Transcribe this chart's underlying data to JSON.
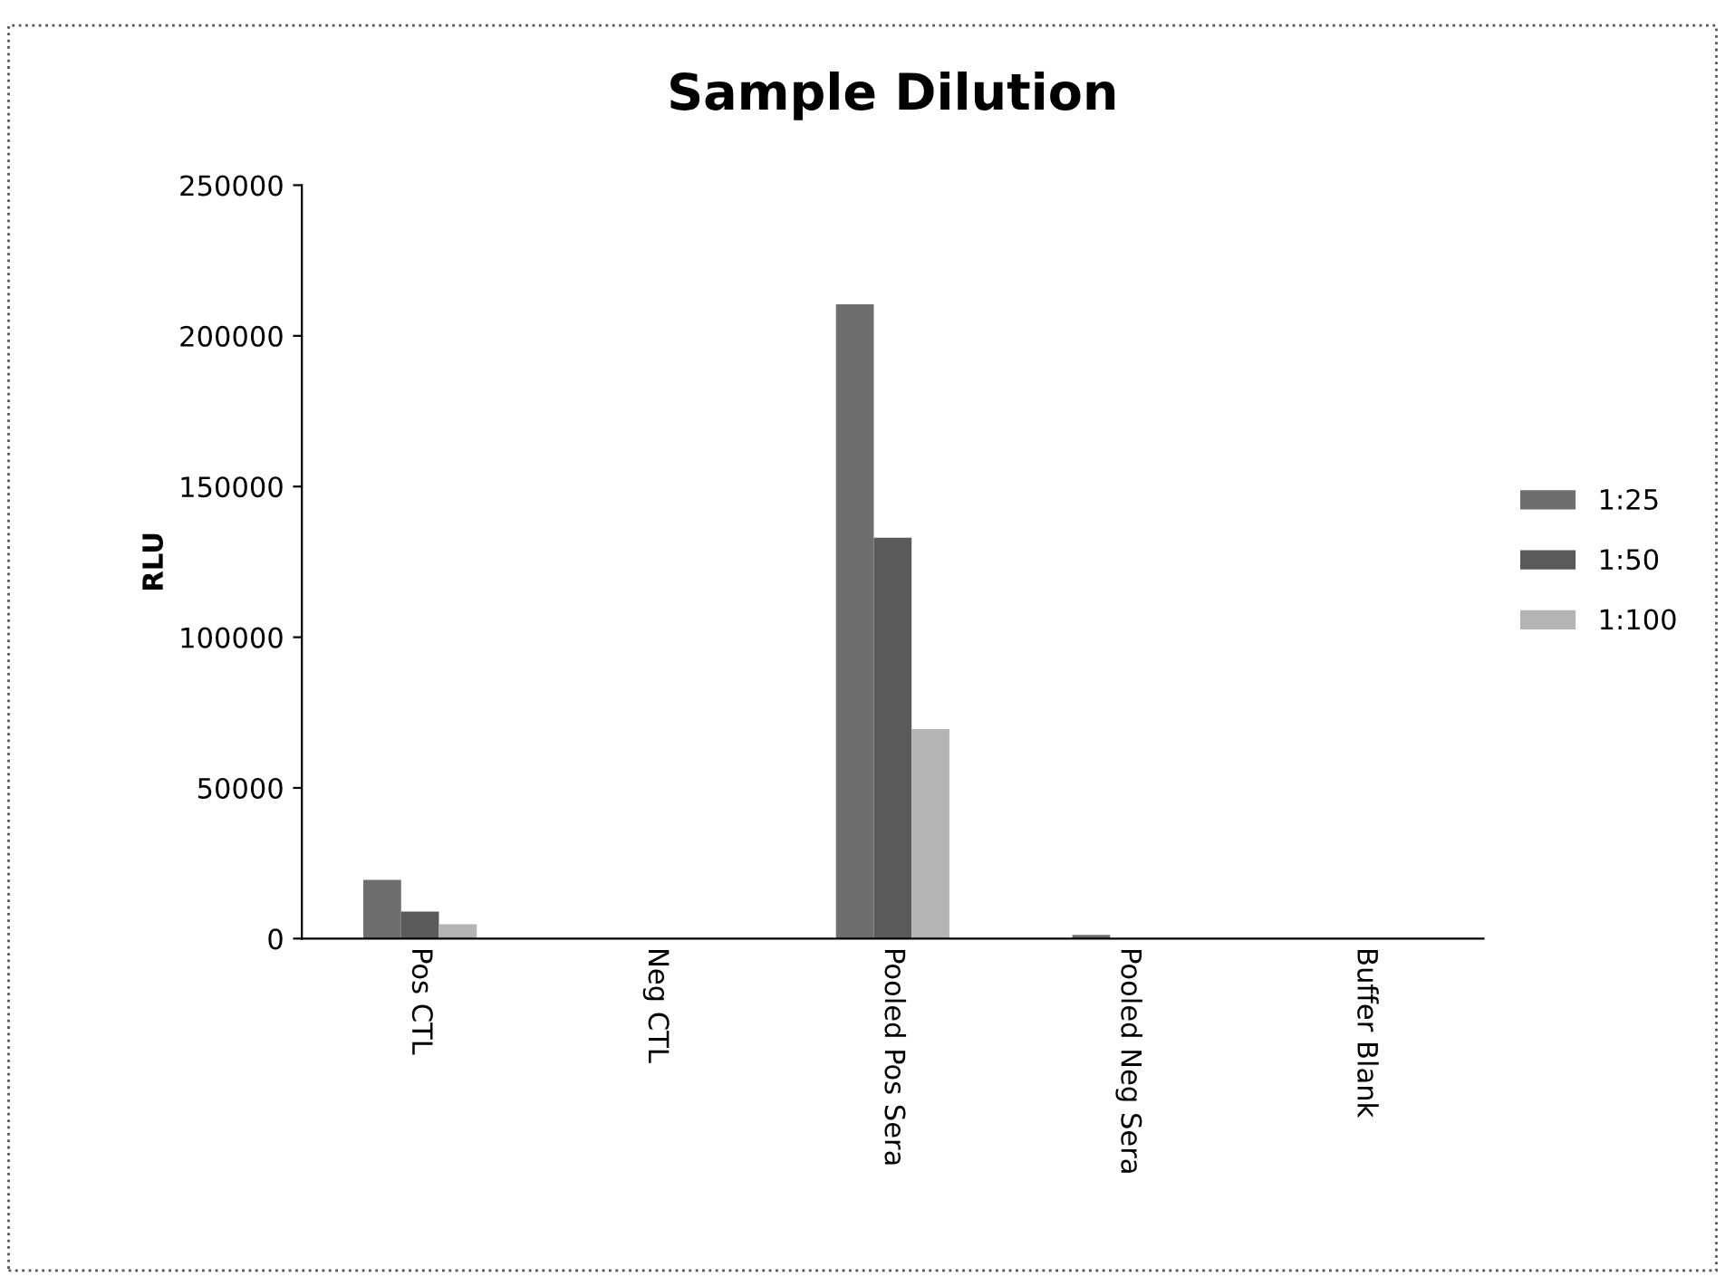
{
  "chart_data": {
    "type": "bar",
    "title": "Sample Dilution",
    "ylabel": "RLU",
    "categories": [
      "Pos CTL",
      "Neg CTL",
      "Pooled Pos Sera",
      "Pooled Neg Sera",
      "Buffer Blank"
    ],
    "series": [
      {
        "name": "1:25",
        "color": "#6e6e6e",
        "values": [
          19500,
          0,
          210500,
          1200,
          0
        ]
      },
      {
        "name": "1:50",
        "color": "#5a5a5a",
        "values": [
          9000,
          0,
          133000,
          null,
          0
        ]
      },
      {
        "name": "1:100",
        "color": "#b4b4b4",
        "values": [
          4800,
          0,
          69500,
          null,
          0
        ]
      }
    ],
    "ylim": [
      0,
      250000
    ],
    "yticks": [
      0,
      50000,
      100000,
      150000,
      200000,
      250000
    ],
    "grid": false,
    "legend": "right"
  }
}
